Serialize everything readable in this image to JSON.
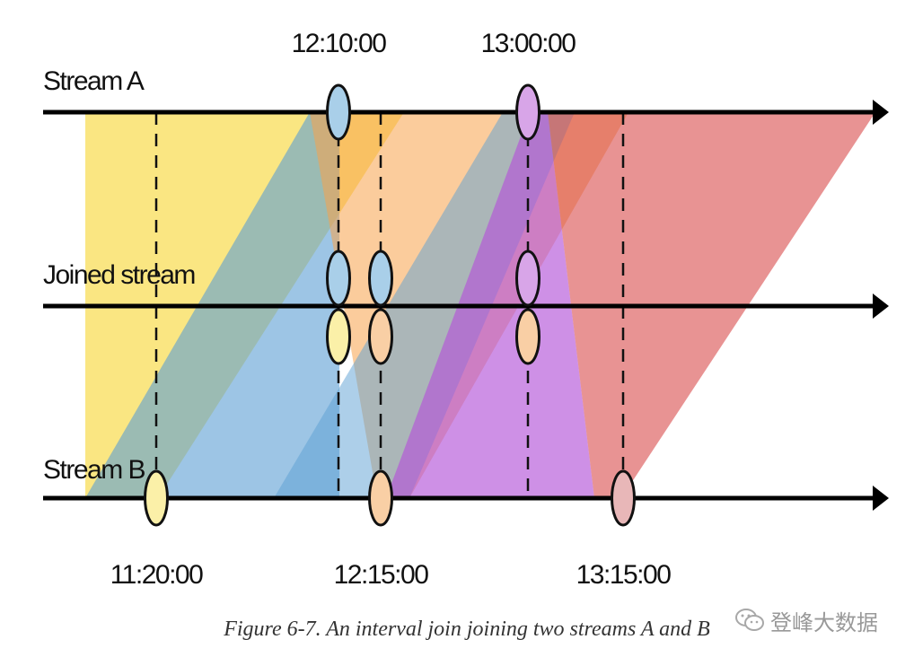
{
  "streams": {
    "a_label": "Stream A",
    "joined_label": "Joined stream",
    "b_label": "Stream B"
  },
  "times": {
    "a1": "12:10:00",
    "a2": "13:00:00",
    "b1": "11:20:00",
    "b2": "12:15:00",
    "b3": "13:15:00"
  },
  "caption": "Figure 6-7. An interval join joining two streams A and B",
  "watermark": {
    "text": "登峰大数据",
    "icon": "wechat-icon"
  },
  "colors": {
    "yellow_band": "#f6d52f",
    "blue_band": "#5b9fd4",
    "orange_band": "#f7a34b",
    "red_band": "#d94b4b",
    "purple_band": "#b455d8",
    "event_a1": "#a9cfe9",
    "event_a2": "#d8a5e8",
    "event_b1": "#fbf0a8",
    "event_b2": "#f9cfa5",
    "event_b3": "#e8b7b8"
  }
}
